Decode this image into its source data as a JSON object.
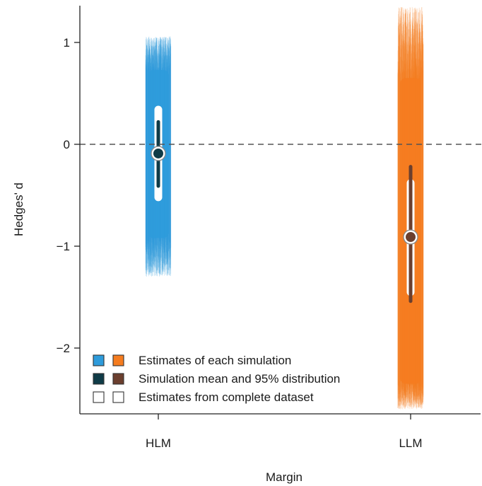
{
  "chart_data": {
    "type": "interval",
    "xlabel": "Margin",
    "ylabel": "Hedges' d",
    "categories": [
      "HLM",
      "LLM"
    ],
    "ylim": [
      -2.6,
      1.35
    ],
    "yticks": [
      1,
      0,
      -1,
      -2
    ],
    "ytick_labels": [
      "1",
      "0",
      "−1",
      "−2"
    ],
    "reference_line": {
      "y": 0,
      "style": "dashed"
    },
    "colors": {
      "HLM": {
        "light": "#2E9BDB",
        "dark": "#0F3B47"
      },
      "LLM": {
        "light": "#F57C1F",
        "dark": "#6B3F2E"
      },
      "complete": "#ffffff"
    },
    "groups": [
      {
        "name": "HLM",
        "simulation_spread": {
          "dense_low": -0.92,
          "dense_high": 0.73,
          "sparse_low": -1.3,
          "sparse_high": 1.06
        },
        "simulation_mean": -0.09,
        "simulation_95": [
          -0.41,
          0.22
        ],
        "complete_dataset_interval": [
          -0.52,
          0.34
        ]
      },
      {
        "name": "LLM",
        "simulation_spread": {
          "dense_low": -2.35,
          "dense_high": 0.65,
          "sparse_low": -2.6,
          "sparse_high": 1.35
        },
        "simulation_mean": -0.91,
        "simulation_95": [
          -1.54,
          -0.22
        ],
        "complete_dataset_interval": [
          -1.45,
          -0.38
        ]
      }
    ],
    "legend": {
      "position": "bottom-left",
      "entries": [
        {
          "label": "Estimates of each simulation",
          "swatches": [
            "#2E9BDB",
            "#F57C1F"
          ]
        },
        {
          "label": "Simulation mean and 95% distribution",
          "swatches": [
            "#0F3B47",
            "#6B3F2E"
          ]
        },
        {
          "label": "Estimates from complete dataset",
          "swatches": [
            "#ffffff",
            "#ffffff"
          ]
        }
      ]
    },
    "grid": false
  }
}
